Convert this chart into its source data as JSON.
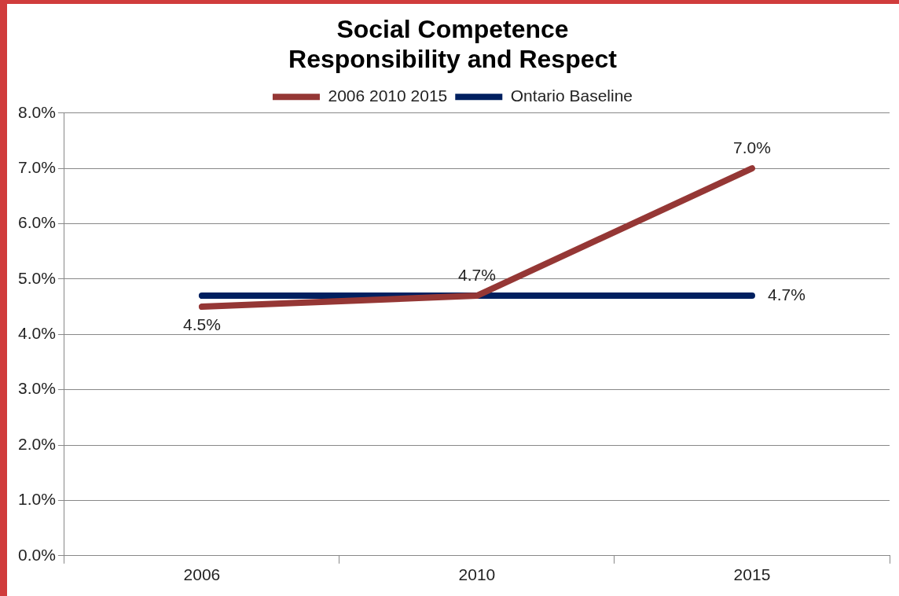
{
  "chart_data": {
    "type": "line",
    "title": "Social Competence\nResponsibility and Respect",
    "categories": [
      "2006",
      "2010",
      "2015"
    ],
    "series": [
      {
        "name": "2006 2010 2015",
        "color": "#953735",
        "values": [
          4.5,
          4.7,
          7.0
        ],
        "value_labels": [
          "4.5%",
          "4.7%",
          "7.0%"
        ]
      },
      {
        "name": "Ontario Baseline",
        "color": "#002060",
        "values": [
          4.7,
          4.7,
          4.7
        ],
        "value_labels": [
          null,
          null,
          "4.7%"
        ]
      }
    ],
    "ylim": [
      0,
      8
    ],
    "yticks": [
      {
        "value": 0,
        "label": "0.0%"
      },
      {
        "value": 1,
        "label": "1.0%"
      },
      {
        "value": 2,
        "label": "2.0%"
      },
      {
        "value": 3,
        "label": "3.0%"
      },
      {
        "value": 4,
        "label": "4.0%"
      },
      {
        "value": 5,
        "label": "5.0%"
      },
      {
        "value": 6,
        "label": "6.0%"
      },
      {
        "value": 7,
        "label": "7.0%"
      },
      {
        "value": 8,
        "label": "8.0%"
      }
    ],
    "grid": "y",
    "legend": "top",
    "marker": "none",
    "line_style": "solid"
  }
}
